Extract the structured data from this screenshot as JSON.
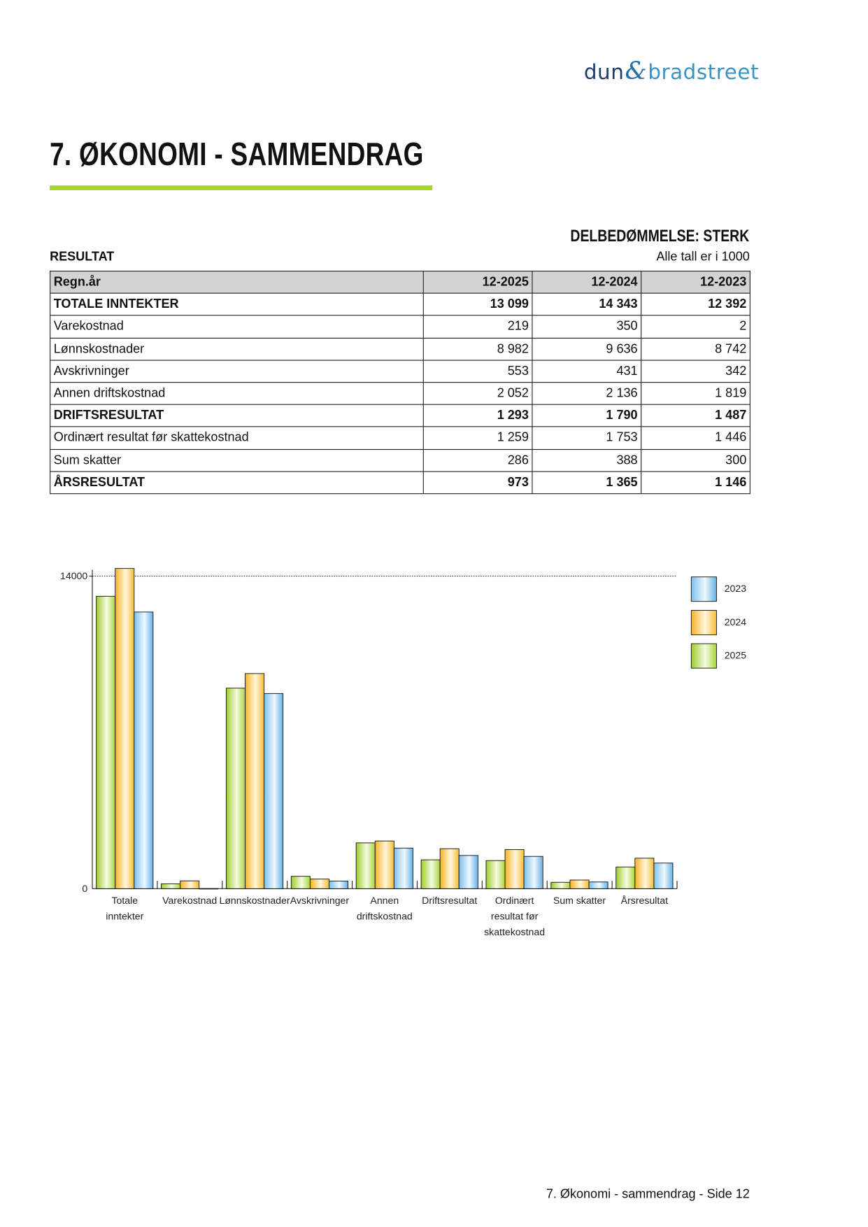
{
  "logo": {
    "part1": "dun",
    "amp": "&",
    "part2": "bradstreet"
  },
  "page_title": "7. ØKONOMI - SAMMENDRAG",
  "rating": "DELBEDØMMELSE: STERK",
  "section": "RESULTAT",
  "unit_note": "Alle tall er i 1000",
  "table": {
    "headers": [
      "Regn.år",
      "12-2025",
      "12-2024",
      "12-2023"
    ],
    "rows": [
      {
        "label": "TOTALE INNTEKTER",
        "bold": true,
        "values": [
          "13 099",
          "14 343",
          "12 392"
        ]
      },
      {
        "label": "Varekostnad",
        "bold": false,
        "values": [
          "219",
          "350",
          "2"
        ]
      },
      {
        "label": "Lønnskostnader",
        "bold": false,
        "values": [
          "8 982",
          "9 636",
          "8 742"
        ]
      },
      {
        "label": "Avskrivninger",
        "bold": false,
        "values": [
          "553",
          "431",
          "342"
        ]
      },
      {
        "label": "Annen driftskostnad",
        "bold": false,
        "values": [
          "2 052",
          "2 136",
          "1 819"
        ]
      },
      {
        "label": "DRIFTSRESULTAT",
        "bold": true,
        "values": [
          "1 293",
          "1 790",
          "1 487"
        ]
      },
      {
        "label": "Ordinært resultat før skattekostnad",
        "bold": false,
        "values": [
          "1 259",
          "1 753",
          "1 446"
        ]
      },
      {
        "label": "Sum skatter",
        "bold": false,
        "values": [
          "286",
          "388",
          "300"
        ]
      },
      {
        "label": "ÅRSRESULTAT",
        "bold": true,
        "values": [
          "973",
          "1 365",
          "1 146"
        ]
      }
    ]
  },
  "chart_data": {
    "type": "bar",
    "categories": [
      [
        "Totale",
        "inntekter"
      ],
      [
        "Varekostnad"
      ],
      [
        "Lønnskostnader"
      ],
      [
        "Avskrivninger"
      ],
      [
        "Annen",
        "driftskostnad"
      ],
      [
        "Driftsresultat"
      ],
      [
        "Ordinært",
        "resultat før",
        "skattekostnad"
      ],
      [
        "Sum skatter"
      ],
      [
        "Årsresultat"
      ]
    ],
    "series": [
      {
        "name": "2025",
        "color": "#9fcf2a",
        "values": [
          13099,
          219,
          8982,
          553,
          2052,
          1293,
          1259,
          286,
          973
        ]
      },
      {
        "name": "2024",
        "color": "#f7b52a",
        "values": [
          14343,
          350,
          9636,
          431,
          2136,
          1790,
          1753,
          388,
          1365
        ]
      },
      {
        "name": "2023",
        "color": "#7cc0ec",
        "values": [
          12392,
          2,
          8742,
          342,
          1819,
          1487,
          1446,
          300,
          1146
        ]
      }
    ],
    "yticks": [
      "0",
      "14000"
    ],
    "ylim": [
      0,
      14000
    ],
    "grid": "dotted line at 14000",
    "legend": [
      "2023",
      "2024",
      "2025"
    ],
    "legend_placement": "right"
  },
  "footer": "7. Økonomi - sammendrag - Side 12"
}
